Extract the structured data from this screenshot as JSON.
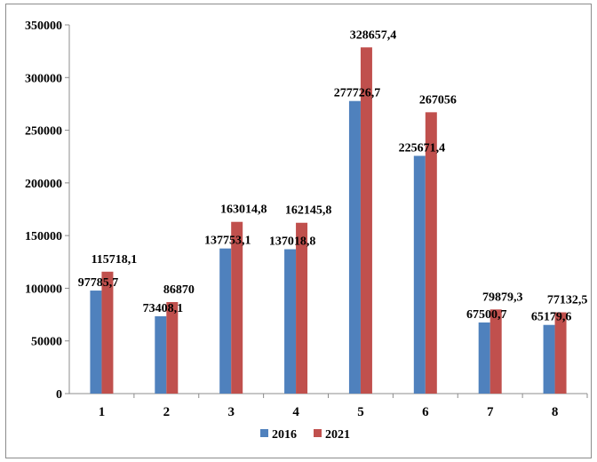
{
  "chart_data": {
    "type": "bar",
    "categories": [
      "1",
      "2",
      "3",
      "4",
      "5",
      "6",
      "7",
      "8"
    ],
    "series": [
      {
        "name": "2016",
        "color": "#4f81bd",
        "values": [
          97785.7,
          73408.1,
          137753.1,
          137018.8,
          277726.7,
          225671.4,
          67500.7,
          65179.6
        ],
        "labels": [
          "97785,7",
          "73408,1",
          "137753,1",
          "137018,8",
          "277726,7",
          "225671,4",
          "67500,7",
          "65179,6"
        ]
      },
      {
        "name": "2021",
        "color": "#c0504d",
        "values": [
          115718.1,
          86870,
          163014.8,
          162145.8,
          328657.4,
          267056,
          79879.3,
          77132.5
        ],
        "labels": [
          "115718,1",
          "86870",
          "163014,8",
          "162145,8",
          "328657,4",
          "267056",
          "79879,3",
          "77132,5"
        ]
      }
    ],
    "yticks": [
      "0",
      "50000",
      "100000",
      "150000",
      "200000",
      "250000",
      "300000",
      "350000"
    ],
    "ylim": [
      0,
      350000
    ],
    "grid": false,
    "legend": "bottom",
    "title": "",
    "xlabel": "",
    "ylabel": ""
  }
}
